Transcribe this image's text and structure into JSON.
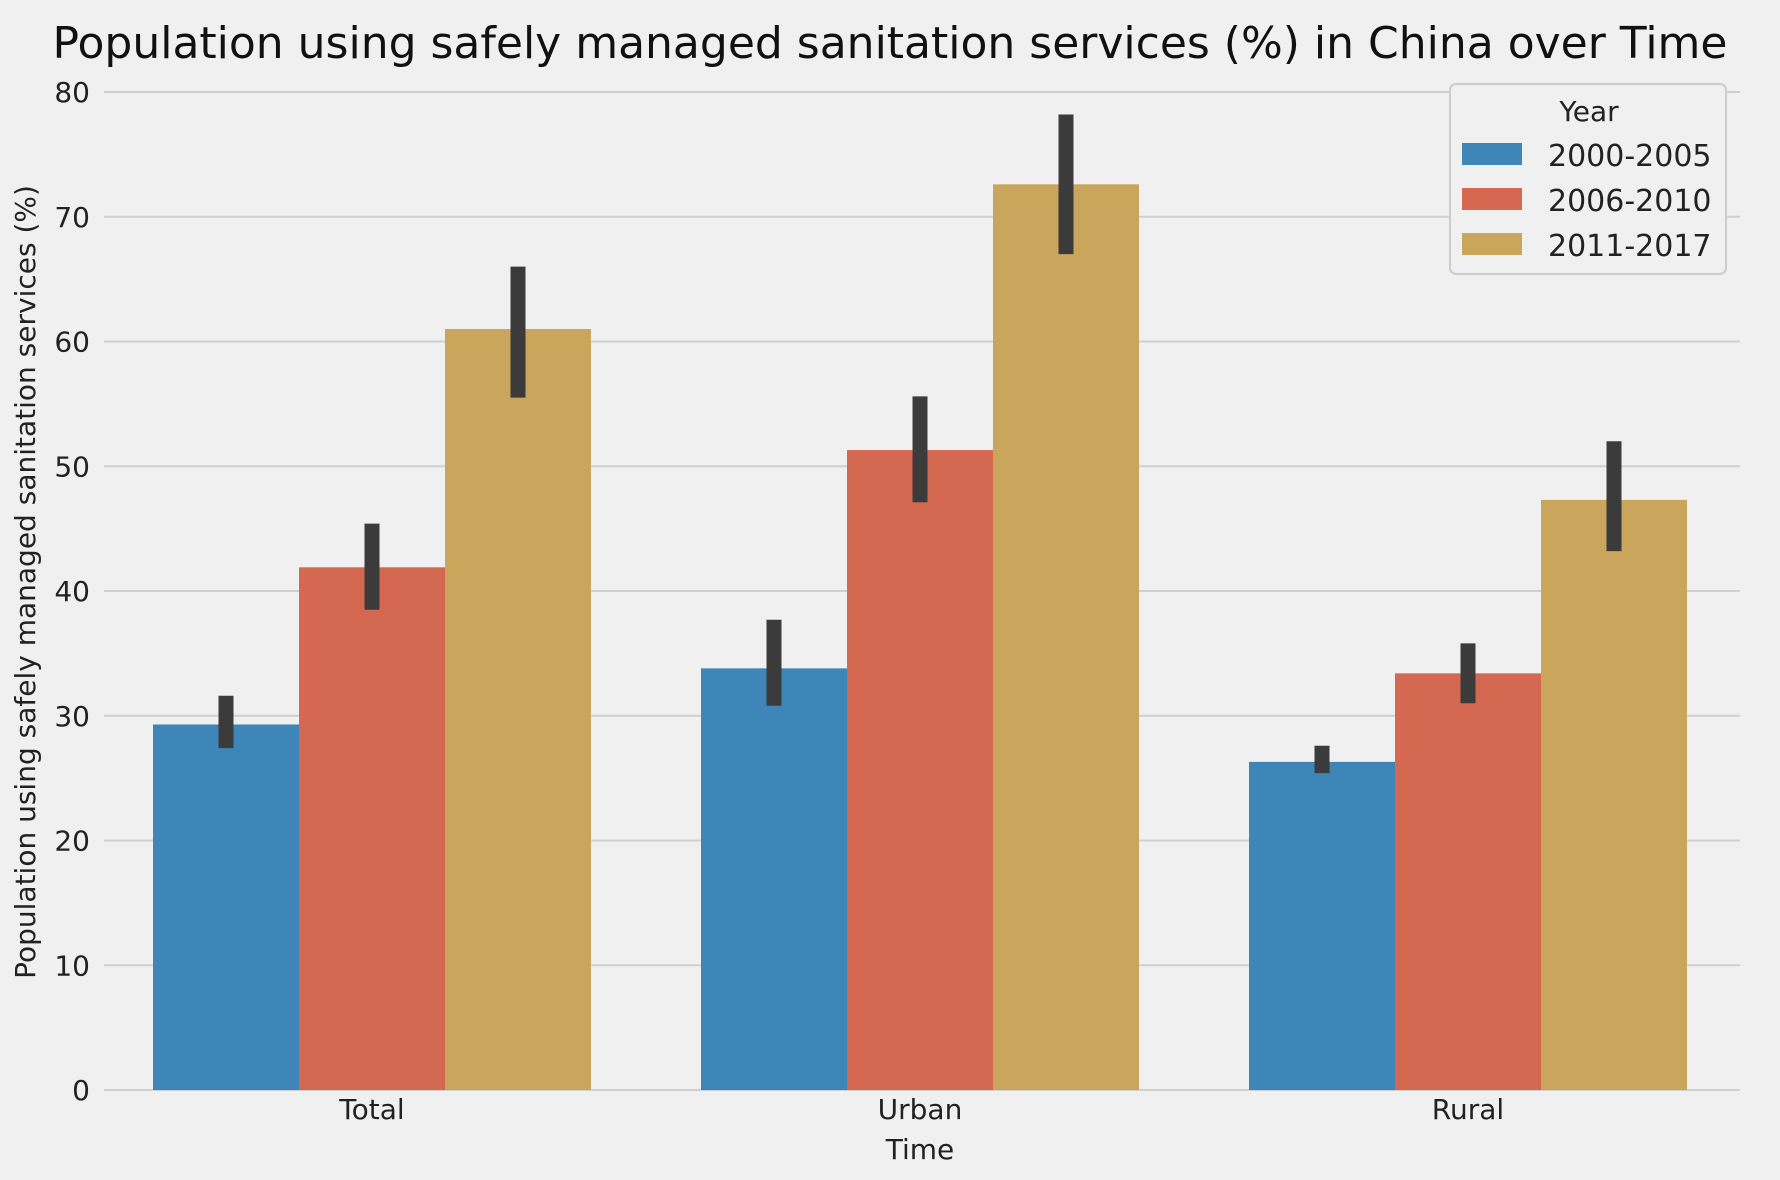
{
  "chart_data": {
    "type": "bar",
    "title": "Population using safely managed sanitation services (%)  in China over Time",
    "xlabel": "Time",
    "ylabel": "Population using safely managed sanitation services (%)",
    "categories": [
      "Total",
      "Urban",
      "Rural"
    ],
    "ylim": [
      0,
      80
    ],
    "yticks": [
      0,
      10,
      20,
      30,
      40,
      50,
      60,
      70,
      80
    ],
    "grid": true,
    "legend": {
      "title": "Year",
      "placement": "top-right"
    },
    "series": [
      {
        "name": "2000-2005",
        "color": "#3f86b8",
        "values": [
          29.3,
          33.8,
          26.3
        ],
        "error_low": [
          27.4,
          30.8,
          25.4
        ],
        "error_high": [
          31.6,
          37.7,
          27.6
        ]
      },
      {
        "name": "2006-2010",
        "color": "#d56850",
        "values": [
          41.9,
          51.3,
          33.4
        ],
        "error_low": [
          38.5,
          47.1,
          31.0
        ],
        "error_high": [
          45.4,
          55.6,
          35.8
        ]
      },
      {
        "name": "2011-2017",
        "color": "#caa65c",
        "values": [
          61.0,
          72.6,
          47.3
        ],
        "error_low": [
          55.5,
          67.0,
          43.2
        ],
        "error_high": [
          66.0,
          78.2,
          52.0
        ]
      }
    ]
  }
}
